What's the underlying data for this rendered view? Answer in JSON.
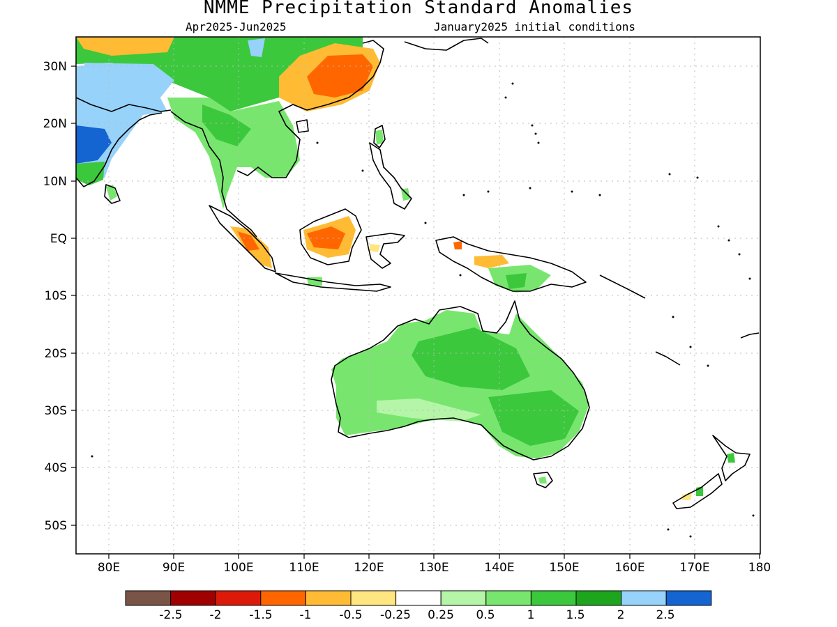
{
  "title": "NMME Precipitation Standard Anomalies",
  "subtitle_left": "Apr2025-Jun2025",
  "subtitle_right": "January2025 initial conditions",
  "map": {
    "lon_range": [
      75,
      180
    ],
    "lat_range": [
      -55,
      35
    ],
    "lat_ticks": [
      "30N",
      "20N",
      "10N",
      "EQ",
      "10S",
      "20S",
      "30S",
      "40S",
      "50S"
    ],
    "lon_ticks": [
      "80E",
      "90E",
      "100E",
      "110E",
      "120E",
      "130E",
      "140E",
      "150E",
      "160E",
      "170E",
      "180"
    ],
    "grid": true
  },
  "colorbar": {
    "colors": [
      "#7a5446",
      "#a00000",
      "#dd1a0a",
      "#ff6600",
      "#ffbb33",
      "#ffe680",
      "#ffffff",
      "#b4f5a8",
      "#78e66e",
      "#3cc83c",
      "#1ea51e",
      "#96d2fa",
      "#1464d2"
    ],
    "labels": [
      "-2.5",
      "-2",
      "-1.5",
      "-1",
      "-0.5",
      "-0.25",
      "0.25",
      "0.5",
      "1",
      "1.5",
      "2",
      "2.5"
    ]
  }
}
